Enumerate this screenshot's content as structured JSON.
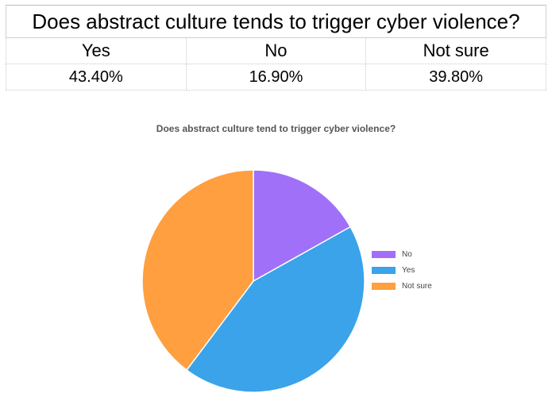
{
  "table": {
    "title": "Does abstract culture tends to trigger cyber violence?",
    "headers": [
      "Yes",
      "No",
      "Not sure"
    ],
    "values": [
      "43.40%",
      "16.90%",
      "39.80%"
    ]
  },
  "chart_data": {
    "type": "pie",
    "title": "Does abstract culture tend to trigger cyber violence?",
    "slices": [
      {
        "label": "No",
        "value": 16.9,
        "color": "#A070F8"
      },
      {
        "label": "Yes",
        "value": 43.4,
        "color": "#3AA3EA"
      },
      {
        "label": "Not sure",
        "value": 39.8,
        "color": "#FF9F40"
      }
    ],
    "start": "top, clockwise",
    "legend_position": "right"
  }
}
